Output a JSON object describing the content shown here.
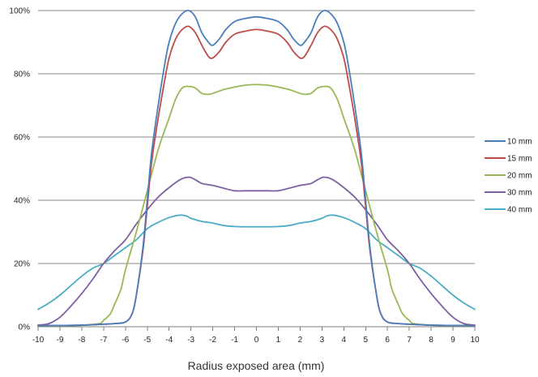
{
  "chart_data": {
    "type": "line",
    "title": "",
    "xlabel": "Radius exposed area (mm)",
    "ylabel": "",
    "xlim": [
      -10,
      10
    ],
    "ylim": [
      0,
      100
    ],
    "xticks": [
      -10,
      -9,
      -8,
      -7,
      -6,
      -5,
      -4,
      -3,
      -2,
      -1,
      0,
      1,
      2,
      3,
      4,
      5,
      6,
      7,
      8,
      9,
      10
    ],
    "yticks": [
      0,
      20,
      40,
      60,
      80,
      100
    ],
    "ytick_labels": [
      "0%",
      "20%",
      "40%",
      "60%",
      "80%",
      "100%"
    ],
    "grid": "horizontal",
    "legend": "right",
    "series": [
      {
        "name": "10 mm",
        "color": "#4a7ebb",
        "points": [
          [
            -10,
            0.3
          ],
          [
            -9,
            0.4
          ],
          [
            -8,
            0.5
          ],
          [
            -7,
            0.8
          ],
          [
            -6.5,
            1
          ],
          [
            -6,
            1.5
          ],
          [
            -5.7,
            4
          ],
          [
            -5.5,
            10
          ],
          [
            -5.2,
            25
          ],
          [
            -5,
            40
          ],
          [
            -4.8,
            55
          ],
          [
            -4.5,
            70
          ],
          [
            -4.2,
            83
          ],
          [
            -4,
            90
          ],
          [
            -3.7,
            96
          ],
          [
            -3.4,
            99
          ],
          [
            -3.1,
            100
          ],
          [
            -2.8,
            98
          ],
          [
            -2.5,
            93
          ],
          [
            -2.2,
            90
          ],
          [
            -2,
            89
          ],
          [
            -1.7,
            91
          ],
          [
            -1.4,
            94
          ],
          [
            -1,
            96.5
          ],
          [
            -0.5,
            97.5
          ],
          [
            0,
            98
          ],
          [
            0.5,
            97.5
          ],
          [
            1,
            96.5
          ],
          [
            1.4,
            94
          ],
          [
            1.7,
            91
          ],
          [
            2,
            89
          ],
          [
            2.2,
            90
          ],
          [
            2.5,
            93
          ],
          [
            2.8,
            98
          ],
          [
            3.1,
            100
          ],
          [
            3.4,
            99
          ],
          [
            3.7,
            96
          ],
          [
            4,
            90
          ],
          [
            4.2,
            83
          ],
          [
            4.5,
            70
          ],
          [
            4.8,
            55
          ],
          [
            5,
            40
          ],
          [
            5.2,
            25
          ],
          [
            5.5,
            10
          ],
          [
            5.7,
            4
          ],
          [
            6,
            1.5
          ],
          [
            6.5,
            1
          ],
          [
            7,
            0.8
          ],
          [
            8,
            0.5
          ],
          [
            9,
            0.4
          ],
          [
            10,
            0.3
          ]
        ]
      },
      {
        "name": "15 mm",
        "color": "#be4b48",
        "points": [
          [
            -10,
            0.3
          ],
          [
            -9,
            0.4
          ],
          [
            -8,
            0.5
          ],
          [
            -7,
            0.8
          ],
          [
            -6.5,
            1
          ],
          [
            -6,
            1.5
          ],
          [
            -5.7,
            4
          ],
          [
            -5.5,
            10
          ],
          [
            -5.2,
            24
          ],
          [
            -5,
            38
          ],
          [
            -4.8,
            52
          ],
          [
            -4.5,
            66
          ],
          [
            -4.2,
            78
          ],
          [
            -4,
            85
          ],
          [
            -3.7,
            91
          ],
          [
            -3.4,
            94
          ],
          [
            -3.1,
            95
          ],
          [
            -2.8,
            93
          ],
          [
            -2.5,
            89
          ],
          [
            -2.2,
            85.5
          ],
          [
            -2,
            85
          ],
          [
            -1.7,
            87
          ],
          [
            -1.4,
            90
          ],
          [
            -1,
            92.5
          ],
          [
            -0.5,
            93.5
          ],
          [
            0,
            94
          ],
          [
            0.5,
            93.5
          ],
          [
            1,
            92.5
          ],
          [
            1.4,
            90
          ],
          [
            1.7,
            87
          ],
          [
            2,
            85
          ],
          [
            2.2,
            85.5
          ],
          [
            2.5,
            89
          ],
          [
            2.8,
            93
          ],
          [
            3.1,
            95
          ],
          [
            3.4,
            94
          ],
          [
            3.7,
            91
          ],
          [
            4,
            85
          ],
          [
            4.2,
            78
          ],
          [
            4.5,
            66
          ],
          [
            4.8,
            52
          ],
          [
            5,
            38
          ],
          [
            5.2,
            24
          ],
          [
            5.5,
            10
          ],
          [
            5.7,
            4
          ],
          [
            6,
            1.5
          ],
          [
            6.5,
            1
          ],
          [
            7,
            0.8
          ],
          [
            8,
            0.5
          ],
          [
            9,
            0.4
          ],
          [
            10,
            0.3
          ]
        ]
      },
      {
        "name": "20 mm",
        "color": "#98b954",
        "points": [
          [
            -10,
            0.2
          ],
          [
            -9,
            0.3
          ],
          [
            -8,
            0.5
          ],
          [
            -7.2,
            1
          ],
          [
            -7,
            2
          ],
          [
            -6.7,
            4
          ],
          [
            -6.5,
            7
          ],
          [
            -6.2,
            12
          ],
          [
            -6,
            18
          ],
          [
            -5.5,
            30
          ],
          [
            -5,
            43
          ],
          [
            -4.5,
            56
          ],
          [
            -4,
            66
          ],
          [
            -3.7,
            72
          ],
          [
            -3.4,
            75.5
          ],
          [
            -3.1,
            76
          ],
          [
            -2.8,
            75.5
          ],
          [
            -2.5,
            73.8
          ],
          [
            -2.2,
            73.5
          ],
          [
            -2,
            73.8
          ],
          [
            -1.5,
            75
          ],
          [
            -1,
            75.8
          ],
          [
            -0.5,
            76.4
          ],
          [
            0,
            76.6
          ],
          [
            0.5,
            76.4
          ],
          [
            1,
            75.8
          ],
          [
            1.5,
            75
          ],
          [
            2,
            73.8
          ],
          [
            2.2,
            73.5
          ],
          [
            2.5,
            73.8
          ],
          [
            2.8,
            75.5
          ],
          [
            3.1,
            76
          ],
          [
            3.4,
            75.5
          ],
          [
            3.7,
            72
          ],
          [
            4,
            66
          ],
          [
            4.5,
            56
          ],
          [
            5,
            43
          ],
          [
            5.5,
            30
          ],
          [
            6,
            18
          ],
          [
            6.2,
            12
          ],
          [
            6.5,
            7
          ],
          [
            6.7,
            4
          ],
          [
            7,
            2
          ],
          [
            7.2,
            1
          ],
          [
            8,
            0.5
          ],
          [
            9,
            0.3
          ],
          [
            10,
            0.2
          ]
        ]
      },
      {
        "name": "30 mm",
        "color": "#7d60a0",
        "points": [
          [
            -10,
            0.5
          ],
          [
            -9.5,
            1
          ],
          [
            -9,
            3
          ],
          [
            -8.5,
            6.5
          ],
          [
            -8,
            10.5
          ],
          [
            -7.5,
            15
          ],
          [
            -7,
            20
          ],
          [
            -6.5,
            24
          ],
          [
            -6,
            27.5
          ],
          [
            -5.5,
            32.5
          ],
          [
            -5,
            37
          ],
          [
            -4.5,
            41
          ],
          [
            -4,
            44
          ],
          [
            -3.5,
            46.5
          ],
          [
            -3.1,
            47.3
          ],
          [
            -2.8,
            46.5
          ],
          [
            -2.5,
            45.3
          ],
          [
            -2,
            44.7
          ],
          [
            -1.5,
            43.8
          ],
          [
            -1,
            43
          ],
          [
            -0.5,
            43
          ],
          [
            0,
            43
          ],
          [
            0.5,
            43
          ],
          [
            1,
            43
          ],
          [
            1.5,
            43.8
          ],
          [
            2,
            44.7
          ],
          [
            2.5,
            45.3
          ],
          [
            2.8,
            46.5
          ],
          [
            3.1,
            47.3
          ],
          [
            3.5,
            46.5
          ],
          [
            4,
            44
          ],
          [
            4.5,
            41
          ],
          [
            5,
            37
          ],
          [
            5.5,
            32.5
          ],
          [
            6,
            27.5
          ],
          [
            6.5,
            24
          ],
          [
            7,
            20
          ],
          [
            7.5,
            15
          ],
          [
            8,
            10.5
          ],
          [
            8.5,
            6.5
          ],
          [
            9,
            3
          ],
          [
            9.5,
            1
          ],
          [
            10,
            0.5
          ]
        ]
      },
      {
        "name": "40 mm",
        "color": "#4bacc6",
        "points": [
          [
            -10,
            5.5
          ],
          [
            -9.5,
            7.5
          ],
          [
            -9,
            10
          ],
          [
            -8.5,
            13
          ],
          [
            -8,
            16
          ],
          [
            -7.5,
            18.5
          ],
          [
            -7,
            20
          ],
          [
            -6.5,
            22.5
          ],
          [
            -6,
            25
          ],
          [
            -5.5,
            27.5
          ],
          [
            -5,
            31
          ],
          [
            -4.5,
            33
          ],
          [
            -4,
            34.5
          ],
          [
            -3.5,
            35.3
          ],
          [
            -3.2,
            35
          ],
          [
            -3,
            34.3
          ],
          [
            -2.5,
            33.3
          ],
          [
            -2,
            32.8
          ],
          [
            -1.5,
            32
          ],
          [
            -1,
            31.7
          ],
          [
            -0.5,
            31.6
          ],
          [
            0,
            31.6
          ],
          [
            0.5,
            31.6
          ],
          [
            1,
            31.7
          ],
          [
            1.5,
            32
          ],
          [
            2,
            32.8
          ],
          [
            2.5,
            33.3
          ],
          [
            3,
            34.3
          ],
          [
            3.2,
            35
          ],
          [
            3.5,
            35.3
          ],
          [
            4,
            34.5
          ],
          [
            4.5,
            33
          ],
          [
            5,
            31
          ],
          [
            5.5,
            27.5
          ],
          [
            6,
            25
          ],
          [
            6.5,
            22.5
          ],
          [
            7,
            20
          ],
          [
            7.5,
            18.5
          ],
          [
            8,
            16
          ],
          [
            8.5,
            13
          ],
          [
            9,
            10
          ],
          [
            9.5,
            7.5
          ],
          [
            10,
            5.5
          ]
        ]
      }
    ]
  }
}
